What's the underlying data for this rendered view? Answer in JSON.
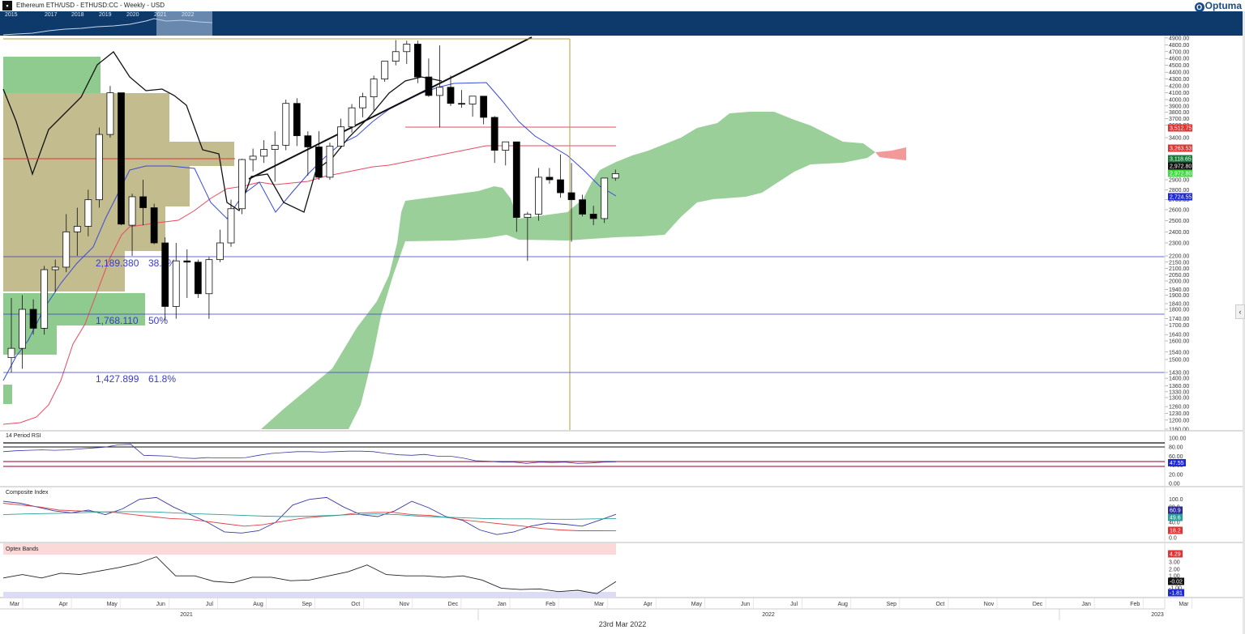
{
  "header": {
    "app_icon": "chart-menu-icon",
    "title": "Ethereum ETH/USD - ETHUSD:CC - Weekly - USD",
    "brand": "Optuma"
  },
  "navigator": {
    "years": [
      "2015",
      "2017",
      "2018",
      "2019",
      "2020",
      "2021",
      "2022"
    ],
    "background": "#0d3a6a"
  },
  "footer": {
    "date": "23rd Mar 2022",
    "months": [
      "Mar",
      "Apr",
      "May",
      "Jun",
      "Jul",
      "Aug",
      "Sep",
      "Oct",
      "Nov",
      "Dec",
      "Jan",
      "Feb",
      "Mar",
      "Apr",
      "May",
      "Jun",
      "Jul",
      "Aug",
      "Sep",
      "Oct",
      "Nov",
      "Dec",
      "Jan",
      "Feb",
      "Mar"
    ],
    "years": [
      "2021",
      "2022",
      "2023"
    ]
  },
  "chart_data": [
    {
      "type": "candlestick",
      "title": "Ethereum ETH/USD - ETHUSD:CC - Weekly - USD",
      "x_months": [
        "Mar",
        "Apr",
        "May",
        "Jun",
        "Jul",
        "Aug",
        "Sep",
        "Oct",
        "Nov",
        "Dec",
        "Jan",
        "Feb",
        "Mar"
      ],
      "y_ticks": [
        4900,
        4800,
        4700,
        4600,
        4500,
        4400,
        4300,
        4200,
        4100,
        4000,
        3900,
        3800,
        3700,
        3600,
        3400,
        2900,
        2800,
        2700,
        2600,
        2500,
        2400,
        2300,
        2200,
        2150,
        2100,
        2050,
        2000,
        1940,
        1900,
        1840,
        1800,
        1740,
        1700,
        1640,
        1600,
        1540,
        1500,
        1430,
        1400,
        1360,
        1330,
        1300,
        1260,
        1230,
        1200,
        1160
      ],
      "ylim": [
        1160,
        4910
      ],
      "candles": [
        {
          "o": 1510,
          "h": 1880,
          "l": 1430,
          "c": 1560
        },
        {
          "o": 1560,
          "h": 1900,
          "l": 1450,
          "c": 1800
        },
        {
          "o": 1800,
          "h": 1870,
          "l": 1640,
          "c": 1680
        },
        {
          "o": 1680,
          "h": 2120,
          "l": 1640,
          "c": 2090
        },
        {
          "o": 2090,
          "h": 2170,
          "l": 1920,
          "c": 2110
        },
        {
          "o": 2110,
          "h": 2560,
          "l": 2070,
          "c": 2400
        },
        {
          "o": 2400,
          "h": 2620,
          "l": 2200,
          "c": 2450
        },
        {
          "o": 2450,
          "h": 2800,
          "l": 2360,
          "c": 2700
        },
        {
          "o": 2700,
          "h": 3560,
          "l": 2620,
          "c": 3450
        },
        {
          "o": 3450,
          "h": 4200,
          "l": 3400,
          "c": 4100
        },
        {
          "o": 4100,
          "h": 4100,
          "l": 2460,
          "c": 2470
        },
        {
          "o": 2460,
          "h": 2760,
          "l": 2200,
          "c": 2730
        },
        {
          "o": 2730,
          "h": 2900,
          "l": 2460,
          "c": 2620
        },
        {
          "o": 2620,
          "h": 2660,
          "l": 2290,
          "c": 2300
        },
        {
          "o": 2300,
          "h": 2350,
          "l": 1730,
          "c": 1820
        },
        {
          "o": 1820,
          "h": 2300,
          "l": 1740,
          "c": 2160
        },
        {
          "o": 2160,
          "h": 2250,
          "l": 1880,
          "c": 2150
        },
        {
          "o": 2150,
          "h": 2170,
          "l": 1880,
          "c": 1910
        },
        {
          "o": 1910,
          "h": 2190,
          "l": 1740,
          "c": 2170
        },
        {
          "o": 2170,
          "h": 2420,
          "l": 2150,
          "c": 2300
        },
        {
          "o": 2300,
          "h": 2700,
          "l": 2270,
          "c": 2610
        },
        {
          "o": 2610,
          "h": 3150,
          "l": 2560,
          "c": 3140
        },
        {
          "o": 3140,
          "h": 3270,
          "l": 3000,
          "c": 3180
        },
        {
          "o": 3180,
          "h": 3370,
          "l": 3100,
          "c": 3260
        },
        {
          "o": 3260,
          "h": 3500,
          "l": 2880,
          "c": 3310
        },
        {
          "o": 3310,
          "h": 4000,
          "l": 3250,
          "c": 3940
        },
        {
          "o": 3940,
          "h": 4020,
          "l": 3300,
          "c": 3430
        },
        {
          "o": 3430,
          "h": 3500,
          "l": 2950,
          "c": 3290
        },
        {
          "o": 3290,
          "h": 3500,
          "l": 2900,
          "c": 2930
        },
        {
          "o": 2930,
          "h": 3340,
          "l": 2900,
          "c": 3300
        },
        {
          "o": 3300,
          "h": 3700,
          "l": 3270,
          "c": 3570
        },
        {
          "o": 3570,
          "h": 3930,
          "l": 3480,
          "c": 3870
        },
        {
          "o": 3870,
          "h": 4100,
          "l": 3720,
          "c": 4040
        },
        {
          "o": 4040,
          "h": 4350,
          "l": 3830,
          "c": 4300
        },
        {
          "o": 4300,
          "h": 4560,
          "l": 4260,
          "c": 4560
        },
        {
          "o": 4560,
          "h": 4870,
          "l": 4500,
          "c": 4700
        },
        {
          "o": 4700,
          "h": 4860,
          "l": 4520,
          "c": 4810
        },
        {
          "o": 4810,
          "h": 4860,
          "l": 4240,
          "c": 4330
        },
        {
          "o": 4330,
          "h": 4600,
          "l": 4040,
          "c": 4060
        },
        {
          "o": 4060,
          "h": 4790,
          "l": 3560,
          "c": 4180
        },
        {
          "o": 4180,
          "h": 4350,
          "l": 3900,
          "c": 3940
        },
        {
          "o": 3940,
          "h": 4140,
          "l": 3870,
          "c": 3930
        },
        {
          "o": 3930,
          "h": 4040,
          "l": 3730,
          "c": 4050
        },
        {
          "o": 4050,
          "h": 4050,
          "l": 3610,
          "c": 3720
        },
        {
          "o": 3720,
          "h": 3740,
          "l": 3100,
          "c": 3250
        },
        {
          "o": 3250,
          "h": 3330,
          "l": 3070,
          "c": 3350
        },
        {
          "o": 3350,
          "h": 3350,
          "l": 2400,
          "c": 2530
        },
        {
          "o": 2530,
          "h": 2580,
          "l": 2160,
          "c": 2560
        },
        {
          "o": 2560,
          "h": 3040,
          "l": 2500,
          "c": 2930
        },
        {
          "o": 2930,
          "h": 3040,
          "l": 2860,
          "c": 2900
        },
        {
          "o": 2900,
          "h": 3200,
          "l": 2720,
          "c": 2770
        },
        {
          "o": 2770,
          "h": 3100,
          "l": 2310,
          "c": 2700
        },
        {
          "o": 2700,
          "h": 2750,
          "l": 2540,
          "c": 2560
        },
        {
          "o": 2560,
          "h": 2640,
          "l": 2460,
          "c": 2520
        },
        {
          "o": 2520,
          "h": 2920,
          "l": 2480,
          "c": 2920
        },
        {
          "o": 2920,
          "h": 3020,
          "l": 2890,
          "c": 2972.8
        }
      ],
      "fib_levels": [
        {
          "value": 2189.38,
          "label": "2,189.380",
          "pct": "38.2%"
        },
        {
          "value": 1768.11,
          "label": "1,768.110",
          "pct": "50%"
        },
        {
          "value": 1427.899,
          "label": "1,427.899",
          "pct": "61.8%"
        }
      ],
      "price_labels": [
        {
          "value": "3,512.75",
          "color": "#e03333"
        },
        {
          "value": "3,263.53",
          "color": "#e03333"
        },
        {
          "value": "3,118.65",
          "color": "#1a7a3a"
        },
        {
          "value": "2,972.80",
          "color": "#111111"
        },
        {
          "value": "2,972.80",
          "color": "#3ddc3d"
        },
        {
          "value": "2,724.55",
          "color": "#1e2ad6"
        }
      ],
      "colors": {
        "kumo": "#8fca8f",
        "kumo_bear": "#f29a9a",
        "kijun": "#e84a5f",
        "tenkan": "#3a4ad8",
        "fib": "#3a3ad0",
        "volume_profile": "#b7b07a",
        "volume_profile_green": "#8fca8f"
      }
    },
    {
      "type": "line",
      "title": "14 Period RSI",
      "y_ticks": [
        "100.00",
        "80.00",
        "60.00",
        "40.00",
        "20.00",
        "0.00"
      ],
      "ylim": [
        0,
        100
      ],
      "current": "47.55",
      "series": [
        {
          "values": [
            70,
            72,
            73,
            74,
            73,
            74,
            76,
            78,
            80,
            85,
            86,
            62,
            61,
            60,
            56,
            55,
            57,
            56,
            56,
            57,
            62,
            66,
            68,
            70,
            70,
            69,
            70,
            71,
            71,
            70,
            66,
            63,
            62,
            64,
            60,
            60,
            56,
            50,
            49,
            47,
            47,
            44,
            47,
            46,
            47,
            44,
            45,
            47,
            47.55
          ]
        }
      ]
    },
    {
      "type": "line",
      "title": "Composite Index",
      "y_ticks": [
        "100.0",
        "80.0",
        "60.0",
        "40.0",
        "20.0",
        "0.0"
      ],
      "ylim": [
        0,
        100
      ],
      "current_values": [
        "60.9",
        "49.6",
        "18.2"
      ],
      "series": [
        {
          "color": "#3a3aa8",
          "values": [
            95,
            90,
            80,
            70,
            65,
            72,
            60,
            75,
            100,
            105,
            80,
            60,
            40,
            15,
            12,
            18,
            40,
            85,
            100,
            105,
            80,
            60,
            55,
            70,
            95,
            78,
            55,
            45,
            20,
            8,
            15,
            30,
            38,
            35,
            30,
            45,
            60.9
          ]
        },
        {
          "color": "#e04040",
          "values": [
            90,
            85,
            80,
            72,
            70,
            68,
            66,
            60,
            55,
            50,
            48,
            42,
            36,
            30,
            34,
            42,
            50,
            55,
            58,
            64,
            66,
            66,
            60,
            58,
            52,
            45,
            40,
            35,
            30,
            24,
            20,
            18,
            18,
            18.2
          ]
        },
        {
          "color": "#2aa09a",
          "values": [
            60,
            62,
            63,
            64,
            66,
            68,
            68,
            67,
            64,
            62,
            60,
            58,
            56,
            55,
            56,
            58,
            60,
            62,
            60,
            56,
            54,
            52,
            50,
            49,
            49,
            48,
            48,
            49,
            49.6
          ]
        }
      ]
    },
    {
      "type": "line",
      "title": "Optex Bands",
      "y_ticks": [
        "4.29",
        "3.00",
        "2.00",
        "1.00",
        "-1.00"
      ],
      "current_values": [
        "-0.02",
        "-1.81"
      ],
      "series": [
        {
          "values": [
            0.5,
            1.0,
            0.5,
            1.2,
            1.0,
            1.5,
            2.0,
            2.6,
            3.6,
            0.8,
            0.8,
            0.0,
            -0.2,
            0.6,
            0.6,
            0.1,
            0.2,
            0.8,
            1.4,
            2.4,
            1.0,
            0.8,
            0.8,
            0.6,
            0.8,
            0.2,
            -1.0,
            -1.2,
            -1.1,
            -1.5,
            -1.3,
            -1.8,
            -0.02
          ]
        }
      ]
    }
  ]
}
